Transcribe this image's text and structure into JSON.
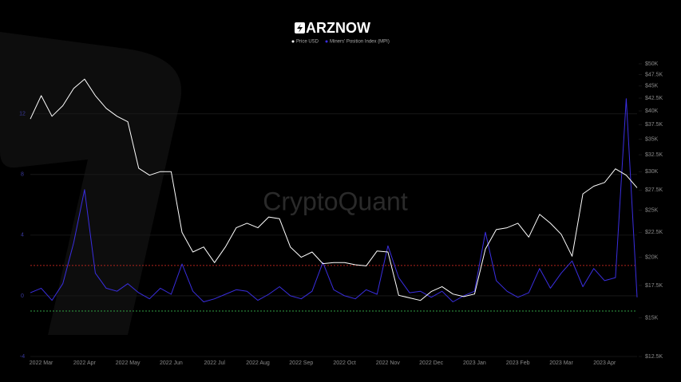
{
  "header": {
    "logo": "ARZNOW"
  },
  "chart_data": {
    "type": "line",
    "watermark": "CryptoQuant",
    "categories": [
      null,
      "2022 Mar",
      null,
      null,
      null,
      "2022 Apr",
      null,
      null,
      null,
      "2022 May",
      null,
      null,
      null,
      "2022 Jun",
      null,
      null,
      null,
      "2022 Jul",
      null,
      null,
      null,
      "2022 Aug",
      null,
      null,
      null,
      "2022 Sep",
      null,
      null,
      null,
      "2022 Oct",
      null,
      null,
      null,
      "2022 Nov",
      null,
      null,
      null,
      "2022 Dec",
      null,
      null,
      null,
      "2023 Jan",
      null,
      null,
      null,
      "2023 Feb",
      null,
      null,
      null,
      "2023 Mar",
      null,
      null,
      null,
      "2023 Apr",
      null,
      null,
      null
    ],
    "series": [
      {
        "name": "Miners' Position Index (MPI)",
        "color": "#3a2ee0",
        "values": [
          0.2,
          0.5,
          -0.3,
          0.8,
          3.5,
          7,
          1.5,
          0.5,
          0.3,
          0.8,
          0.2,
          -0.2,
          0.5,
          0.1,
          2.1,
          0.3,
          -0.4,
          -0.2,
          0.1,
          0.4,
          0.3,
          -0.3,
          0.1,
          0.6,
          0,
          -0.2,
          0.3,
          2.2,
          0.4,
          0,
          -0.2,
          0.4,
          0.1,
          3.3,
          1.2,
          0.2,
          0.3,
          -0.1,
          0.3,
          -0.4,
          0,
          0.3,
          4.2,
          1,
          0.3,
          -0.1,
          0.2,
          1.8,
          0.5,
          1.5,
          2.3,
          0.6,
          1.8,
          1,
          1.2,
          13,
          -0.1
        ]
      },
      {
        "name": "Price USD",
        "color": "#ffffff",
        "axis": "y2",
        "values": [
          38500,
          43000,
          39000,
          41000,
          44500,
          46500,
          43000,
          40500,
          39000,
          38000,
          30500,
          29500,
          30000,
          30000,
          22500,
          20500,
          21000,
          19500,
          21000,
          23000,
          23500,
          23000,
          24200,
          24000,
          21000,
          20000,
          20500,
          19400,
          19500,
          19500,
          19300,
          19200,
          20600,
          20500,
          16700,
          16500,
          16300,
          17000,
          17400,
          16800,
          16600,
          16800,
          20800,
          22800,
          23000,
          23500,
          22000,
          24500,
          23500,
          22300,
          20100,
          27000,
          28000,
          28500,
          30400,
          29500,
          27800
        ]
      }
    ],
    "ylim": [
      -4,
      15.3
    ],
    "yticks": [
      -4,
      0,
      4,
      8,
      12
    ],
    "y2lim": [
      12500,
      50000
    ],
    "y2_log": true,
    "y2ticks": [
      {
        "value": 12500,
        "label": "$12.5K"
      },
      {
        "value": 15000,
        "label": "$15K"
      },
      {
        "value": 17500,
        "label": "$17.5K"
      },
      {
        "value": 20000,
        "label": "$20K"
      },
      {
        "value": 22500,
        "label": "$22.5K"
      },
      {
        "value": 25000,
        "label": "$25K"
      },
      {
        "value": 27500,
        "label": "$27.5K"
      },
      {
        "value": 30000,
        "label": "$30K"
      },
      {
        "value": 32500,
        "label": "$32.5K"
      },
      {
        "value": 35000,
        "label": "$35K"
      },
      {
        "value": 37500,
        "label": "$37.5K"
      },
      {
        "value": 40000,
        "label": "$40K"
      },
      {
        "value": 42500,
        "label": "$42.5K"
      },
      {
        "value": 45000,
        "label": "$45K"
      },
      {
        "value": 47500,
        "label": "$47.5K"
      },
      {
        "value": 50000,
        "label": "$50K"
      }
    ],
    "ref_lines": [
      {
        "value": 2,
        "color": "#b3241e"
      },
      {
        "value": -1,
        "color": "#2f9e44"
      }
    ],
    "grid": true,
    "legend": "top"
  }
}
